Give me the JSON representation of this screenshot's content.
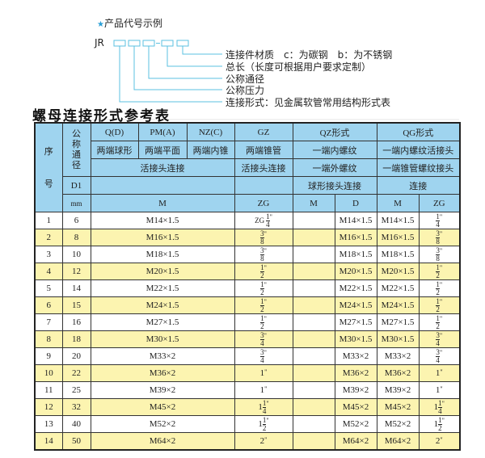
{
  "example": {
    "title": "产品代号示例",
    "code_prefix": "JR",
    "dash": "-",
    "labels": [
      "连接件材质　c：为碳钢　b：为不锈钢",
      "总长（长度可根据用户要求定制）",
      "公称通径",
      "公称压力",
      "连接形式：见金属软管常用结构形式表"
    ]
  },
  "table_title": "螺母连接形式参考表",
  "colors": {
    "header_bg": "#9fd4ef",
    "alt_row_bg": "#fcf4b0",
    "diagram_line": "#5bc0e0"
  },
  "header": {
    "seq": "序号",
    "dn": "公称通径",
    "q": "Q(D)",
    "pm": "PM(A)",
    "nz": "NZ(C)",
    "gz": "GZ",
    "qz": "QZ形式",
    "qg": "QG形式",
    "q_desc": "两端球形",
    "pm_desc": "两端平面",
    "nz_desc": "两端内锥",
    "gz_desc": "两端锥管",
    "qz_desc": "一端内螺纹",
    "qg_desc": "一端内螺纹活接头",
    "live_conn": "活接头连接",
    "gz_conn": "活接头连接",
    "qz_conn2": "一端外螺纹",
    "qg_conn2": "一端锥管螺纹接头",
    "d1": "D1",
    "qz_conn3": "球形接头连接",
    "qg_conn3": "连接",
    "mm": "mm",
    "m": "M",
    "zg": "ZG",
    "qz_m": "M",
    "qz_d": "D",
    "qg_m": "M",
    "qg_zg": "ZG"
  },
  "rows": [
    {
      "no": "1",
      "dn": "6",
      "m": "M14×1.5",
      "gz": {
        "pre": "ZG",
        "whole": "",
        "num": "1",
        "den": "4"
      },
      "qz_m": "",
      "qz_d": "M14×1.5",
      "qg_m": "M14×1.5",
      "qg_zg": {
        "pre": "",
        "whole": "",
        "num": "1",
        "den": "4"
      }
    },
    {
      "no": "2",
      "dn": "8",
      "m": "M16×1.5",
      "gz": {
        "pre": "",
        "whole": "",
        "num": "3",
        "den": "8"
      },
      "qz_m": "",
      "qz_d": "M16×1.5",
      "qg_m": "M16×1.5",
      "qg_zg": {
        "pre": "",
        "whole": "",
        "num": "3",
        "den": "8"
      }
    },
    {
      "no": "3",
      "dn": "10",
      "m": "M18×1.5",
      "gz": {
        "pre": "",
        "whole": "",
        "num": "3",
        "den": "8"
      },
      "qz_m": "",
      "qz_d": "M18×1.5",
      "qg_m": "M18×1.5",
      "qg_zg": {
        "pre": "",
        "whole": "",
        "num": "3",
        "den": "8"
      }
    },
    {
      "no": "4",
      "dn": "12",
      "m": "M20×1.5",
      "gz": {
        "pre": "",
        "whole": "",
        "num": "1",
        "den": "2"
      },
      "qz_m": "",
      "qz_d": "M20×1.5",
      "qg_m": "M20×1.5",
      "qg_zg": {
        "pre": "",
        "whole": "",
        "num": "1",
        "den": "2"
      }
    },
    {
      "no": "5",
      "dn": "14",
      "m": "M22×1.5",
      "gz": {
        "pre": "",
        "whole": "",
        "num": "1",
        "den": "2"
      },
      "qz_m": "",
      "qz_d": "M22×1.5",
      "qg_m": "M22×1.5",
      "qg_zg": {
        "pre": "",
        "whole": "",
        "num": "1",
        "den": "2"
      }
    },
    {
      "no": "6",
      "dn": "15",
      "m": "M24×1.5",
      "gz": {
        "pre": "",
        "whole": "",
        "num": "1",
        "den": "2"
      },
      "qz_m": "",
      "qz_d": "M24×1.5",
      "qg_m": "M24×1.5",
      "qg_zg": {
        "pre": "",
        "whole": "",
        "num": "1",
        "den": "2"
      }
    },
    {
      "no": "7",
      "dn": "16",
      "m": "M27×1.5",
      "gz": {
        "pre": "",
        "whole": "",
        "num": "1",
        "den": "2"
      },
      "qz_m": "",
      "qz_d": "M27×1.5",
      "qg_m": "M27×1.5",
      "qg_zg": {
        "pre": "",
        "whole": "",
        "num": "1",
        "den": "2"
      }
    },
    {
      "no": "8",
      "dn": "18",
      "m": "M30×1.5",
      "gz": {
        "pre": "",
        "whole": "",
        "num": "3",
        "den": "4"
      },
      "qz_m": "",
      "qz_d": "M30×1.5",
      "qg_m": "M30×1.5",
      "qg_zg": {
        "pre": "",
        "whole": "",
        "num": "3",
        "den": "4"
      }
    },
    {
      "no": "9",
      "dn": "20",
      "m": "M33×2",
      "gz": {
        "pre": "",
        "whole": "",
        "num": "3",
        "den": "4"
      },
      "qz_m": "",
      "qz_d": "M33×2",
      "qg_m": "M33×2",
      "qg_zg": {
        "pre": "",
        "whole": "",
        "num": "3",
        "den": "4"
      }
    },
    {
      "no": "10",
      "dn": "22",
      "m": "M36×2",
      "gz": {
        "pre": "",
        "whole": "1",
        "num": "",
        "den": ""
      },
      "qz_m": "",
      "qz_d": "M36×2",
      "qg_m": "M36×2",
      "qg_zg": {
        "pre": "",
        "whole": "1",
        "num": "",
        "den": ""
      }
    },
    {
      "no": "11",
      "dn": "25",
      "m": "M39×2",
      "gz": {
        "pre": "",
        "whole": "1",
        "num": "",
        "den": ""
      },
      "qz_m": "",
      "qz_d": "M39×2",
      "qg_m": "M39×2",
      "qg_zg": {
        "pre": "",
        "whole": "1",
        "num": "",
        "den": ""
      }
    },
    {
      "no": "12",
      "dn": "32",
      "m": "M45×2",
      "gz": {
        "pre": "",
        "whole": "1",
        "num": "1",
        "den": "4"
      },
      "qz_m": "",
      "qz_d": "M45×2",
      "qg_m": "M45×2",
      "qg_zg": {
        "pre": "",
        "whole": "1",
        "num": "1",
        "den": "4"
      }
    },
    {
      "no": "13",
      "dn": "40",
      "m": "M52×2",
      "gz": {
        "pre": "",
        "whole": "1",
        "num": "1",
        "den": "2"
      },
      "qz_m": "",
      "qz_d": "M52×2",
      "qg_m": "M52×2",
      "qg_zg": {
        "pre": "",
        "whole": "1",
        "num": "1",
        "den": "2"
      }
    },
    {
      "no": "14",
      "dn": "50",
      "m": "M64×2",
      "gz": {
        "pre": "",
        "whole": "2",
        "num": "",
        "den": ""
      },
      "qz_m": "",
      "qz_d": "M64×2",
      "qg_m": "M64×2",
      "qg_zg": {
        "pre": "",
        "whole": "2",
        "num": "",
        "den": ""
      }
    }
  ],
  "inch_mark": "\""
}
